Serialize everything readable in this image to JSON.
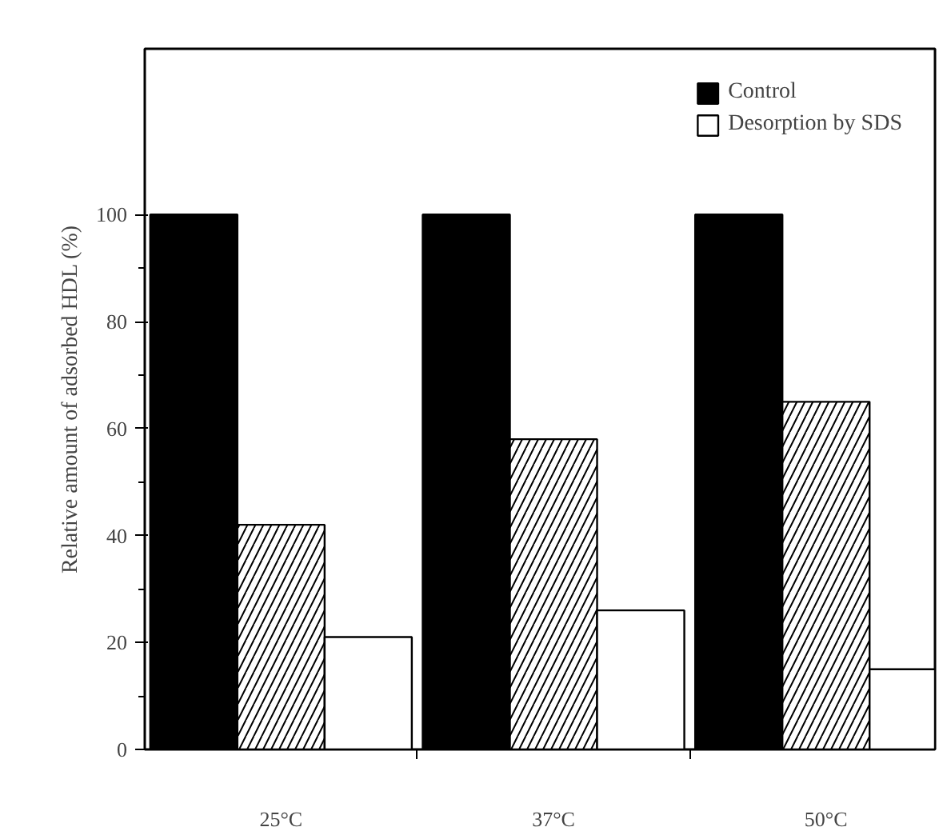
{
  "chart_data": {
    "type": "bar",
    "ylabel": "Relative amount of adsorbed HDL (%)",
    "categories": [
      "25°C",
      "37°C",
      "50°C"
    ],
    "series": [
      {
        "name": "Control",
        "color": "#000000",
        "values": [
          100,
          100,
          100
        ]
      },
      {
        "color": "#ffffff",
        "values": [
          42,
          58,
          65
        ]
      },
      {
        "name": "Desorption by SDS",
        "color": "#ffffff",
        "values": [
          21,
          26,
          15
        ]
      }
    ],
    "ylim": [
      0,
      131
    ],
    "yticks": [
      0,
      20,
      40,
      60,
      80,
      100
    ],
    "legend": "top right",
    "grid": false
  }
}
